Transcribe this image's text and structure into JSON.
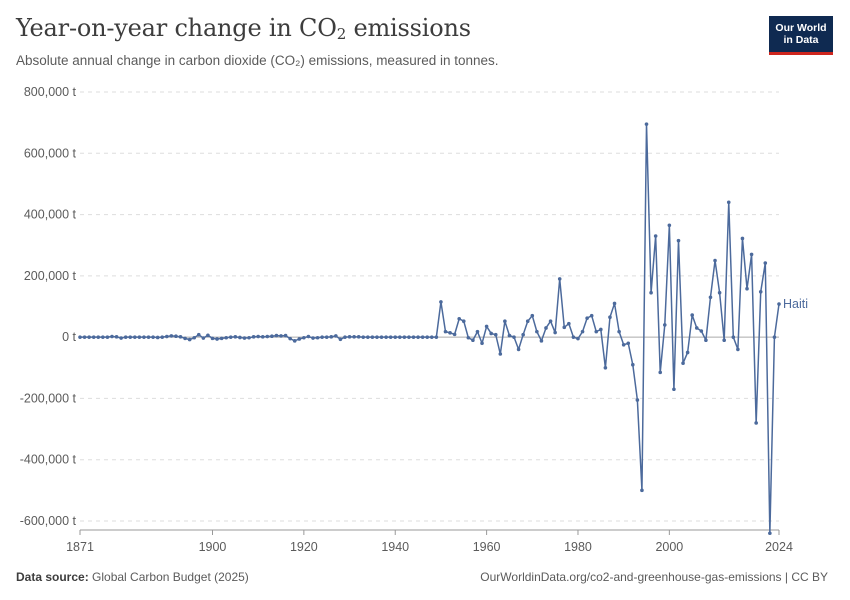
{
  "header": {
    "title_main": "Year-on-year change in CO",
    "title_sub": "2",
    "title_tail": " emissions",
    "subtitle": "Absolute annual change in carbon dioxide (CO₂) emissions, measured in tonnes."
  },
  "logo": {
    "line1": "Our World",
    "line2": "in Data"
  },
  "footer": {
    "source_label": "Data source:",
    "source_text": " Global Carbon Budget (2025)",
    "url_text": "OurWorldinData.org/co2-and-greenhouse-gas-emissions | CC BY"
  },
  "colors": {
    "series": "#4c6a9c",
    "text": "#5b5b5b",
    "grid": "#dddddd",
    "zero": "#aaaaaa"
  },
  "chart_data": {
    "type": "line",
    "title": "Year-on-year change in CO₂ emissions",
    "subtitle": "Absolute annual change in carbon dioxide (CO₂) emissions, measured in tonnes.",
    "xlim": [
      1871,
      2024
    ],
    "ylim": [
      -640000,
      800000
    ],
    "x_ticks": [
      1871,
      1900,
      1920,
      1940,
      1960,
      1980,
      2000,
      2024
    ],
    "x_tick_labels": [
      "1871",
      "1900",
      "1920",
      "1940",
      "1960",
      "1980",
      "2000",
      "2024"
    ],
    "y_ticks": [
      800000,
      600000,
      400000,
      200000,
      0,
      -200000,
      -400000,
      -600000
    ],
    "y_tick_labels": [
      "800,000 t",
      "600,000 t",
      "400,000 t",
      "200,000 t",
      "0 t",
      "-200,000 t",
      "-400,000 t",
      "-600,000 t"
    ],
    "grid": true,
    "legend": "end-of-line label",
    "series": [
      {
        "name": "Haiti",
        "x": [
          1871,
          1872,
          1873,
          1874,
          1875,
          1876,
          1877,
          1878,
          1879,
          1880,
          1881,
          1882,
          1883,
          1884,
          1885,
          1886,
          1887,
          1888,
          1889,
          1890,
          1891,
          1892,
          1893,
          1894,
          1895,
          1896,
          1897,
          1898,
          1899,
          1900,
          1901,
          1902,
          1903,
          1904,
          1905,
          1906,
          1907,
          1908,
          1909,
          1910,
          1911,
          1912,
          1913,
          1914,
          1915,
          1916,
          1917,
          1918,
          1919,
          1920,
          1921,
          1922,
          1923,
          1924,
          1925,
          1926,
          1927,
          1928,
          1929,
          1930,
          1931,
          1932,
          1933,
          1934,
          1935,
          1936,
          1937,
          1938,
          1939,
          1940,
          1941,
          1942,
          1943,
          1944,
          1945,
          1946,
          1947,
          1948,
          1949,
          1950,
          1951,
          1952,
          1953,
          1954,
          1955,
          1956,
          1957,
          1958,
          1959,
          1960,
          1961,
          1962,
          1963,
          1964,
          1965,
          1966,
          1967,
          1968,
          1969,
          1970,
          1971,
          1972,
          1973,
          1974,
          1975,
          1976,
          1977,
          1978,
          1979,
          1980,
          1981,
          1982,
          1983,
          1984,
          1985,
          1986,
          1987,
          1988,
          1989,
          1990,
          1991,
          1992,
          1993,
          1994,
          1995,
          1996,
          1997,
          1998,
          1999,
          2000,
          2001,
          2002,
          2003,
          2004,
          2005,
          2006,
          2007,
          2008,
          2009,
          2010,
          2011,
          2012,
          2013,
          2014,
          2015,
          2016,
          2017,
          2018,
          2019,
          2020,
          2021,
          2022,
          2023,
          2024
        ],
        "values": [
          0,
          0,
          0,
          0,
          0,
          0,
          0,
          2000,
          1000,
          -3000,
          0,
          0,
          0,
          0,
          0,
          0,
          0,
          -1000,
          0,
          2000,
          4000,
          3000,
          1000,
          -4000,
          -8000,
          -2000,
          8000,
          -3000,
          6000,
          -4000,
          -6000,
          -4000,
          -2000,
          0,
          1000,
          -1000,
          -3000,
          -2000,
          1000,
          2000,
          1000,
          2000,
          3000,
          5000,
          4000,
          5000,
          -5000,
          -12000,
          -6000,
          -2000,
          2000,
          -3000,
          -2000,
          0,
          0,
          1000,
          4000,
          -7000,
          0,
          1000,
          1000,
          1000,
          0,
          0,
          0,
          0,
          0,
          0,
          0,
          0,
          0,
          0,
          0,
          0,
          0,
          0,
          0,
          0,
          0,
          115000,
          18000,
          14000,
          9000,
          60000,
          52000,
          -2000,
          -10000,
          18000,
          -20000,
          35000,
          12000,
          8000,
          -55000,
          52000,
          5000,
          0,
          -40000,
          8000,
          52000,
          70000,
          18000,
          -12000,
          30000,
          52000,
          15000,
          190000,
          32000,
          44000,
          0,
          -5000,
          18000,
          62000,
          70000,
          18000,
          25000,
          -100000,
          65000,
          110000,
          18000,
          -25000,
          -20000,
          -90000,
          -205000,
          -500000,
          695000,
          145000,
          330000,
          -115000,
          40000,
          365000,
          -170000,
          315000,
          -85000,
          -50000,
          72000,
          30000,
          20000,
          -10000,
          130000,
          250000,
          145000,
          -10000,
          440000,
          0,
          -40000,
          322000,
          158000,
          270000,
          -280000,
          148000,
          242000,
          -640000,
          0,
          108000
        ]
      }
    ]
  }
}
